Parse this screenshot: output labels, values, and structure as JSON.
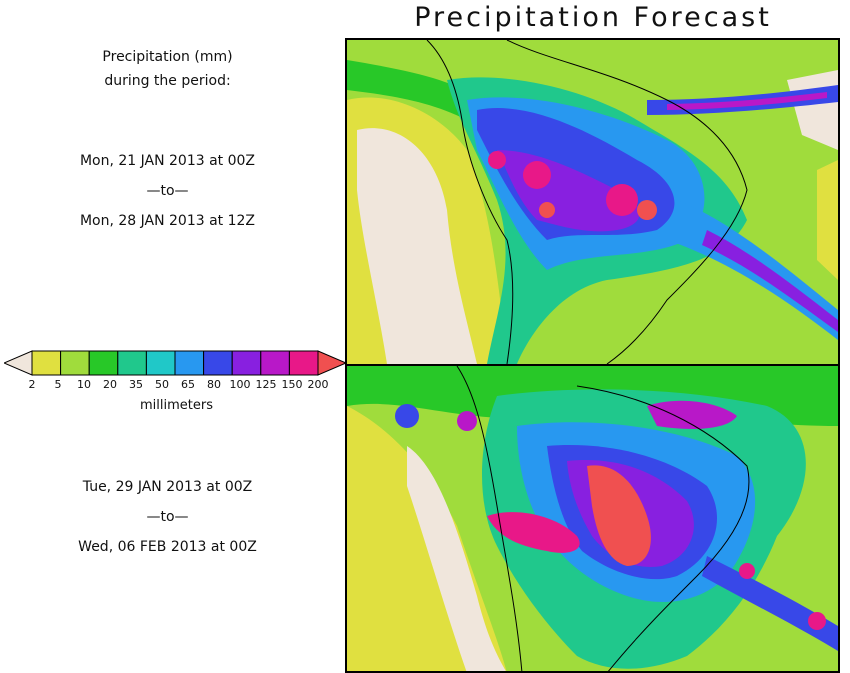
{
  "title": "Precipitation Forecast",
  "header": {
    "line1": "Precipitation (mm)",
    "line2": "during the period:"
  },
  "period1": {
    "start": "Mon, 21 JAN 2013 at 00Z",
    "sep": "—to—",
    "end": "Mon, 28 JAN 2013 at 12Z"
  },
  "period2": {
    "start": "Tue, 29 JAN 2013 at 00Z",
    "sep": "—to—",
    "end": "Wed, 06 FEB 2013 at 00Z"
  },
  "colorbar": {
    "unit": "millimeters",
    "ticks": [
      "2",
      "5",
      "10",
      "20",
      "35",
      "50",
      "65",
      "80",
      "100",
      "125",
      "150",
      "200"
    ],
    "colors": [
      "#f0e6dc",
      "#e0e040",
      "#a0dc3c",
      "#28c828",
      "#20c88c",
      "#20c8c8",
      "#2898f0",
      "#3848e8",
      "#8820e0",
      "#b818c8",
      "#e81888",
      "#f05050"
    ]
  }
}
